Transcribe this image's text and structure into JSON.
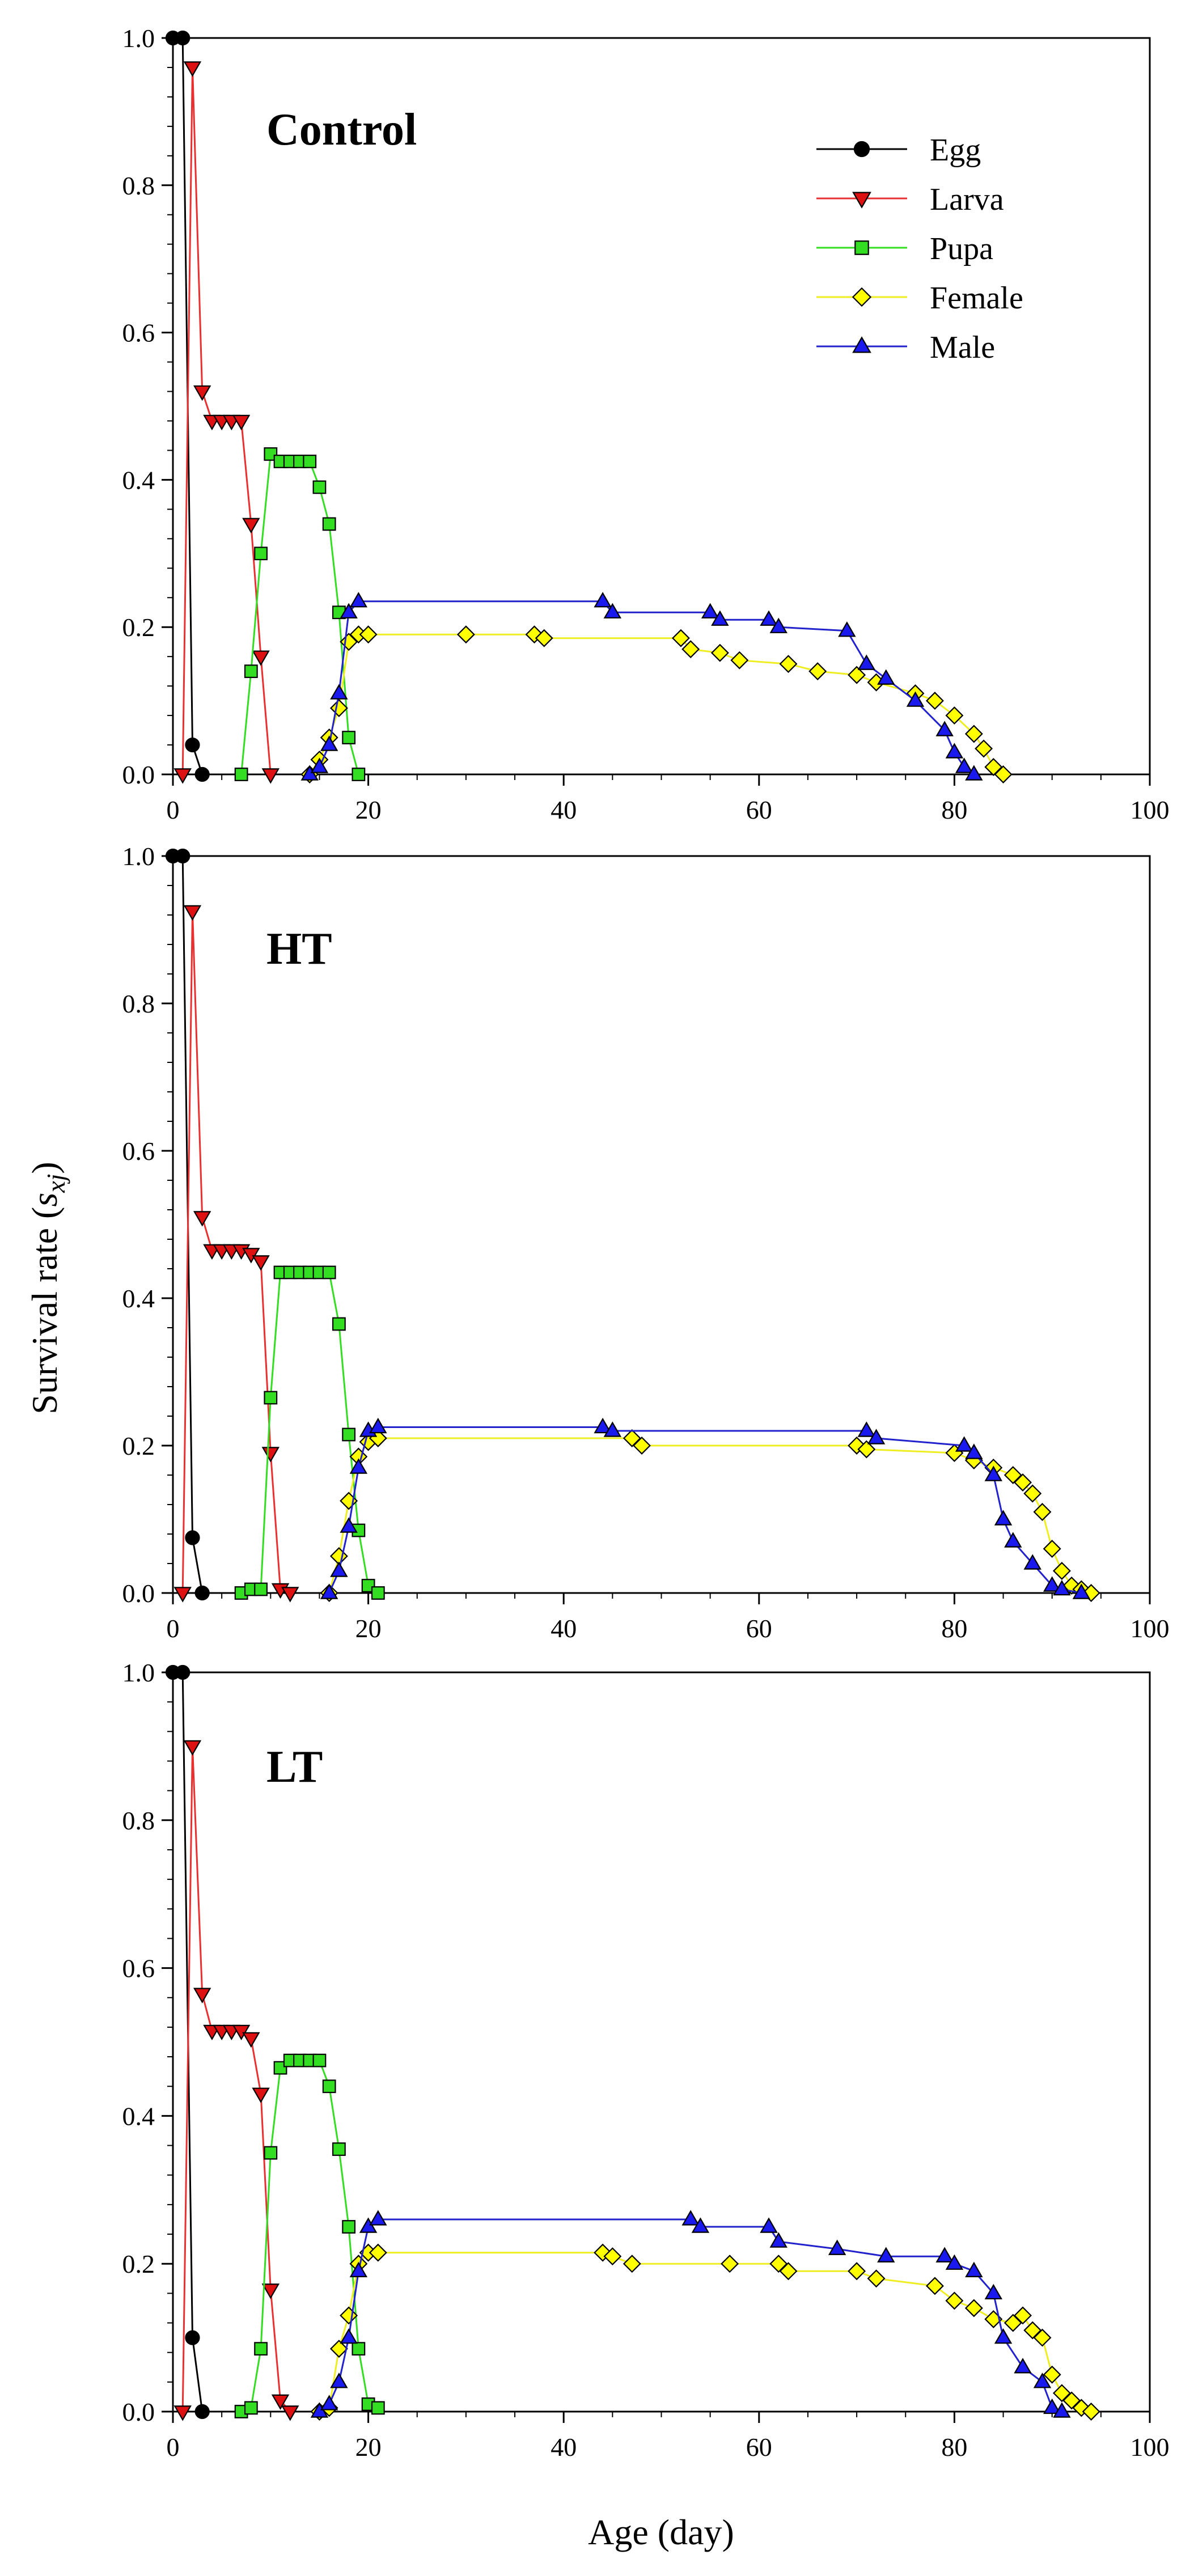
{
  "figure": {
    "ylabel_main": "Survival rate (",
    "ylabel_sub": "s",
    "ylabel_subscript": "xj",
    "ylabel_close": ")",
    "xlabel": "Age (day)"
  },
  "legend": {
    "position": "top-right of top panel",
    "items": [
      {
        "label": "Egg",
        "marker": "circle",
        "fill": "#000000",
        "line": "#000000"
      },
      {
        "label": "Larva",
        "marker": "triangle-down",
        "fill": "#dd1111",
        "line": "#e83030"
      },
      {
        "label": "Pupa",
        "marker": "square",
        "fill": "#33dd22",
        "line": "#33dd22"
      },
      {
        "label": "Female",
        "marker": "diamond",
        "fill": "#ffff00",
        "line": "#eeee22"
      },
      {
        "label": "Male",
        "marker": "triangle-up",
        "fill": "#1a1aee",
        "line": "#2222cc"
      }
    ]
  },
  "chart_data": [
    {
      "type": "line",
      "title": "Control",
      "xlabel": "Age (day)",
      "ylabel": "Survival rate (sxj)",
      "xlim": [
        0,
        100
      ],
      "ylim": [
        0,
        1.0
      ],
      "xticks": [
        "0",
        "20",
        "40",
        "60",
        "80",
        "100"
      ],
      "yticks": [
        "0.0",
        "0.2",
        "0.4",
        "0.6",
        "0.8",
        "1.0"
      ],
      "series": [
        {
          "name": "Egg",
          "points": [
            [
              0,
              1.0
            ],
            [
              1,
              1.0
            ],
            [
              2,
              0.04
            ],
            [
              3,
              0.0
            ]
          ]
        },
        {
          "name": "Larva",
          "points": [
            [
              1,
              0.0
            ],
            [
              2,
              0.96
            ],
            [
              3,
              0.52
            ],
            [
              4,
              0.48
            ],
            [
              5,
              0.48
            ],
            [
              6,
              0.48
            ],
            [
              7,
              0.48
            ],
            [
              8,
              0.34
            ],
            [
              9,
              0.16
            ],
            [
              10,
              0.0
            ]
          ]
        },
        {
          "name": "Pupa",
          "points": [
            [
              7,
              0.0
            ],
            [
              8,
              0.14
            ],
            [
              9,
              0.3
            ],
            [
              10,
              0.435
            ],
            [
              11,
              0.425
            ],
            [
              12,
              0.425
            ],
            [
              13,
              0.425
            ],
            [
              14,
              0.425
            ],
            [
              15,
              0.39
            ],
            [
              16,
              0.34
            ],
            [
              17,
              0.22
            ],
            [
              18,
              0.05
            ],
            [
              19,
              0.0
            ]
          ]
        },
        {
          "name": "Female",
          "points": [
            [
              14,
              0.0
            ],
            [
              15,
              0.02
            ],
            [
              16,
              0.05
            ],
            [
              17,
              0.09
            ],
            [
              18,
              0.18
            ],
            [
              19,
              0.19
            ],
            [
              20,
              0.19
            ],
            [
              30,
              0.19
            ],
            [
              37,
              0.19
            ],
            [
              38,
              0.185
            ],
            [
              52,
              0.185
            ],
            [
              53,
              0.17
            ],
            [
              56,
              0.165
            ],
            [
              58,
              0.155
            ],
            [
              63,
              0.15
            ],
            [
              66,
              0.14
            ],
            [
              70,
              0.135
            ],
            [
              72,
              0.125
            ],
            [
              76,
              0.11
            ],
            [
              78,
              0.1
            ],
            [
              80,
              0.08
            ],
            [
              82,
              0.055
            ],
            [
              83,
              0.035
            ],
            [
              84,
              0.01
            ],
            [
              85,
              0.0
            ]
          ]
        },
        {
          "name": "Male",
          "points": [
            [
              14,
              0.0
            ],
            [
              15,
              0.01
            ],
            [
              16,
              0.04
            ],
            [
              17,
              0.11
            ],
            [
              18,
              0.22
            ],
            [
              19,
              0.235
            ],
            [
              44,
              0.235
            ],
            [
              45,
              0.22
            ],
            [
              55,
              0.22
            ],
            [
              56,
              0.21
            ],
            [
              61,
              0.21
            ],
            [
              62,
              0.2
            ],
            [
              69,
              0.195
            ],
            [
              71,
              0.15
            ],
            [
              73,
              0.13
            ],
            [
              76,
              0.1
            ],
            [
              79,
              0.06
            ],
            [
              80,
              0.03
            ],
            [
              81,
              0.01
            ],
            [
              82,
              0.0
            ]
          ]
        }
      ]
    },
    {
      "type": "line",
      "title": "HT",
      "xlabel": "Age (day)",
      "ylabel": "Survival rate (sxj)",
      "xlim": [
        0,
        100
      ],
      "ylim": [
        0,
        1.0
      ],
      "xticks": [
        "0",
        "20",
        "40",
        "60",
        "80",
        "100"
      ],
      "yticks": [
        "0.0",
        "0.2",
        "0.4",
        "0.6",
        "0.8",
        "1.0"
      ],
      "series": [
        {
          "name": "Egg",
          "points": [
            [
              0,
              1.0
            ],
            [
              1,
              1.0
            ],
            [
              2,
              0.075
            ],
            [
              3,
              0.0
            ]
          ]
        },
        {
          "name": "Larva",
          "points": [
            [
              1,
              0.0
            ],
            [
              2,
              0.925
            ],
            [
              3,
              0.51
            ],
            [
              4,
              0.465
            ],
            [
              5,
              0.465
            ],
            [
              6,
              0.465
            ],
            [
              7,
              0.465
            ],
            [
              8,
              0.46
            ],
            [
              9,
              0.45
            ],
            [
              10,
              0.19
            ],
            [
              11,
              0.005
            ],
            [
              12,
              0.0
            ]
          ]
        },
        {
          "name": "Pupa",
          "points": [
            [
              7,
              0.0
            ],
            [
              8,
              0.005
            ],
            [
              9,
              0.005
            ],
            [
              10,
              0.265
            ],
            [
              11,
              0.435
            ],
            [
              12,
              0.435
            ],
            [
              13,
              0.435
            ],
            [
              14,
              0.435
            ],
            [
              15,
              0.435
            ],
            [
              16,
              0.435
            ],
            [
              17,
              0.365
            ],
            [
              18,
              0.215
            ],
            [
              19,
              0.085
            ],
            [
              20,
              0.01
            ],
            [
              21,
              0.0
            ]
          ]
        },
        {
          "name": "Female",
          "points": [
            [
              16,
              0.0
            ],
            [
              17,
              0.05
            ],
            [
              18,
              0.125
            ],
            [
              19,
              0.185
            ],
            [
              20,
              0.205
            ],
            [
              21,
              0.21
            ],
            [
              47,
              0.21
            ],
            [
              48,
              0.2
            ],
            [
              70,
              0.2
            ],
            [
              71,
              0.195
            ],
            [
              80,
              0.19
            ],
            [
              82,
              0.18
            ],
            [
              84,
              0.17
            ],
            [
              86,
              0.16
            ],
            [
              87,
              0.15
            ],
            [
              88,
              0.135
            ],
            [
              89,
              0.11
            ],
            [
              90,
              0.06
            ],
            [
              91,
              0.03
            ],
            [
              92,
              0.01
            ],
            [
              93,
              0.005
            ],
            [
              94,
              0.0
            ]
          ]
        },
        {
          "name": "Male",
          "points": [
            [
              16,
              0.0
            ],
            [
              17,
              0.03
            ],
            [
              18,
              0.09
            ],
            [
              19,
              0.17
            ],
            [
              20,
              0.22
            ],
            [
              21,
              0.225
            ],
            [
              44,
              0.225
            ],
            [
              45,
              0.22
            ],
            [
              71,
              0.22
            ],
            [
              72,
              0.21
            ],
            [
              81,
              0.2
            ],
            [
              82,
              0.19
            ],
            [
              84,
              0.16
            ],
            [
              85,
              0.1
            ],
            [
              86,
              0.07
            ],
            [
              88,
              0.04
            ],
            [
              90,
              0.01
            ],
            [
              91,
              0.005
            ],
            [
              93,
              0.0
            ]
          ]
        }
      ]
    },
    {
      "type": "line",
      "title": "LT",
      "xlabel": "Age (day)",
      "ylabel": "Survival rate (sxj)",
      "xlim": [
        0,
        100
      ],
      "ylim": [
        0,
        1.0
      ],
      "xticks": [
        "0",
        "20",
        "40",
        "60",
        "80",
        "100"
      ],
      "yticks": [
        "0.0",
        "0.2",
        "0.4",
        "0.6",
        "0.8",
        "1.0"
      ],
      "series": [
        {
          "name": "Egg",
          "points": [
            [
              0,
              1.0
            ],
            [
              1,
              1.0
            ],
            [
              2,
              0.1
            ],
            [
              3,
              0.0
            ]
          ]
        },
        {
          "name": "Larva",
          "points": [
            [
              1,
              0.0
            ],
            [
              2,
              0.9
            ],
            [
              3,
              0.565
            ],
            [
              4,
              0.515
            ],
            [
              5,
              0.515
            ],
            [
              6,
              0.515
            ],
            [
              7,
              0.515
            ],
            [
              8,
              0.505
            ],
            [
              9,
              0.43
            ],
            [
              10,
              0.165
            ],
            [
              11,
              0.015
            ],
            [
              12,
              0.0
            ]
          ]
        },
        {
          "name": "Pupa",
          "points": [
            [
              7,
              0.0
            ],
            [
              8,
              0.005
            ],
            [
              9,
              0.085
            ],
            [
              10,
              0.35
            ],
            [
              11,
              0.465
            ],
            [
              12,
              0.475
            ],
            [
              13,
              0.475
            ],
            [
              14,
              0.475
            ],
            [
              15,
              0.475
            ],
            [
              16,
              0.44
            ],
            [
              17,
              0.355
            ],
            [
              18,
              0.25
            ],
            [
              19,
              0.085
            ],
            [
              20,
              0.01
            ],
            [
              21,
              0.005
            ]
          ]
        },
        {
          "name": "Female",
          "points": [
            [
              15,
              0.0
            ],
            [
              16,
              0.005
            ],
            [
              17,
              0.085
            ],
            [
              18,
              0.13
            ],
            [
              19,
              0.2
            ],
            [
              20,
              0.215
            ],
            [
              21,
              0.215
            ],
            [
              44,
              0.215
            ],
            [
              45,
              0.21
            ],
            [
              47,
              0.2
            ],
            [
              57,
              0.2
            ],
            [
              62,
              0.2
            ],
            [
              63,
              0.19
            ],
            [
              70,
              0.19
            ],
            [
              72,
              0.18
            ],
            [
              78,
              0.17
            ],
            [
              80,
              0.15
            ],
            [
              82,
              0.14
            ],
            [
              84,
              0.125
            ],
            [
              86,
              0.12
            ],
            [
              87,
              0.13
            ],
            [
              88,
              0.11
            ],
            [
              89,
              0.1
            ],
            [
              90,
              0.05
            ],
            [
              91,
              0.025
            ],
            [
              92,
              0.015
            ],
            [
              93,
              0.005
            ],
            [
              94,
              0.0
            ]
          ]
        },
        {
          "name": "Male",
          "points": [
            [
              15,
              0.0
            ],
            [
              16,
              0.01
            ],
            [
              17,
              0.04
            ],
            [
              18,
              0.1
            ],
            [
              19,
              0.19
            ],
            [
              20,
              0.25
            ],
            [
              21,
              0.26
            ],
            [
              53,
              0.26
            ],
            [
              54,
              0.25
            ],
            [
              61,
              0.25
            ],
            [
              62,
              0.23
            ],
            [
              68,
              0.22
            ],
            [
              73,
              0.21
            ],
            [
              79,
              0.21
            ],
            [
              80,
              0.2
            ],
            [
              82,
              0.19
            ],
            [
              84,
              0.16
            ],
            [
              85,
              0.1
            ],
            [
              87,
              0.06
            ],
            [
              89,
              0.04
            ],
            [
              90,
              0.005
            ],
            [
              91,
              0.0
            ]
          ]
        }
      ]
    }
  ]
}
